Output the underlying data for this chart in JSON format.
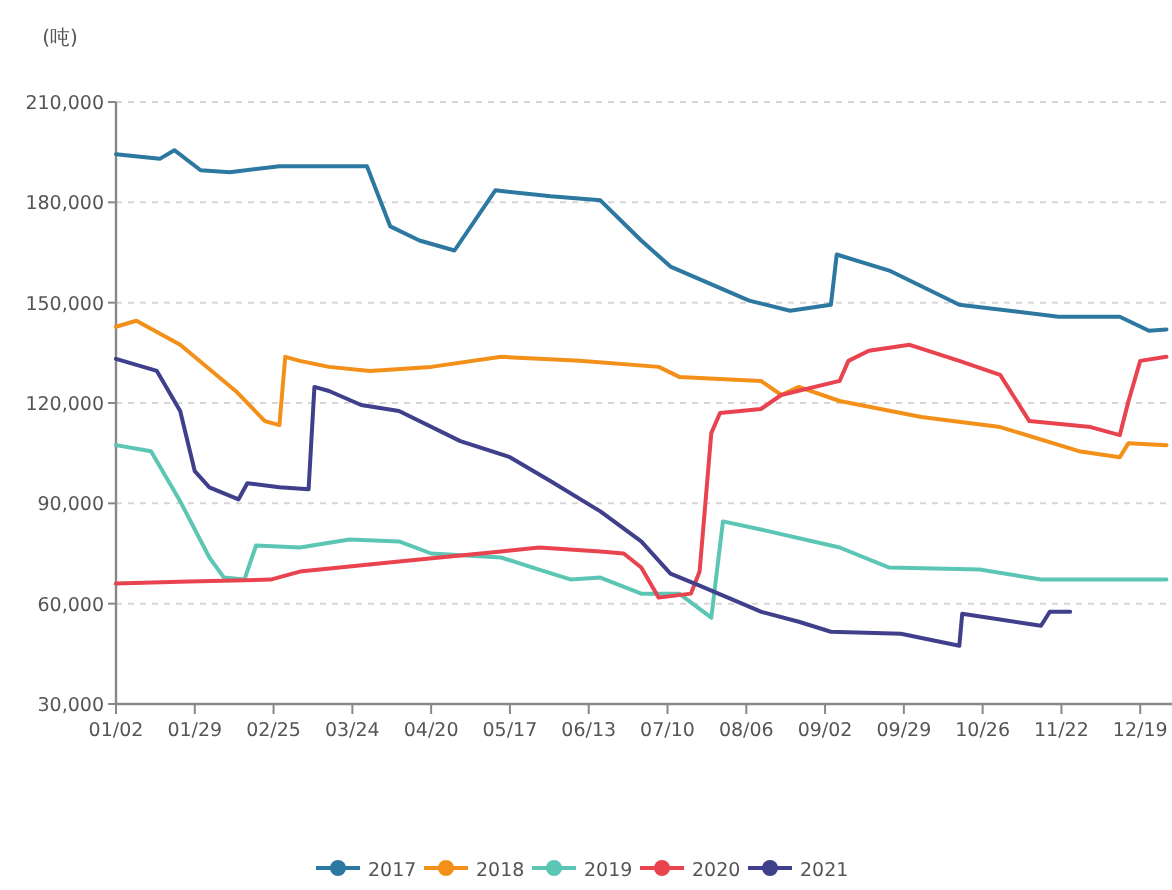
{
  "chart_data": {
    "type": "line",
    "ylabel": "(吨)",
    "xlim": [
      "--01-02",
      "--12-30"
    ],
    "xticks": [
      {
        "value": "--01-02",
        "label": "01/02"
      },
      {
        "value": "--01-29",
        "label": "01/29"
      },
      {
        "value": "--02-25",
        "label": "02/25"
      },
      {
        "value": "--03-24",
        "label": "03/24"
      },
      {
        "value": "--04-20",
        "label": "04/20"
      },
      {
        "value": "--05-17",
        "label": "05/17"
      },
      {
        "value": "--06-13",
        "label": "06/13"
      },
      {
        "value": "--07-10",
        "label": "07/10"
      },
      {
        "value": "--08-06",
        "label": "08/06"
      },
      {
        "value": "--09-02",
        "label": "09/02"
      },
      {
        "value": "--09-29",
        "label": "09/29"
      },
      {
        "value": "--10-26",
        "label": "10/26"
      },
      {
        "value": "--11-22",
        "label": "11/22"
      },
      {
        "value": "--12-19",
        "label": "12/19"
      }
    ],
    "ylim": [
      30000,
      210000
    ],
    "yticks": [
      {
        "value": 30000,
        "label": "30,000"
      },
      {
        "value": 60000,
        "label": "60,000"
      },
      {
        "value": 90000,
        "label": "90,000"
      },
      {
        "value": 120000,
        "label": "120,000"
      },
      {
        "value": 150000,
        "label": "150,000"
      },
      {
        "value": 180000,
        "label": "180,000"
      },
      {
        "value": 210000,
        "label": "210,000"
      }
    ],
    "grid": "y",
    "legend": "bottom",
    "series": [
      {
        "name": "2017",
        "color": "#2c78a0",
        "x": [
          "--01-02",
          "--01-17",
          "--01-22",
          "--01-31",
          "--02-10",
          "--02-27",
          "--03-29",
          "--04-06",
          "--04-16",
          "--04-28",
          "--05-12",
          "--05-31",
          "--06-17",
          "--07-01",
          "--07-11",
          "--08-07",
          "--08-21",
          "--09-04",
          "--09-06",
          "--09-24",
          "--10-18",
          "--11-21",
          "--12-12",
          "--12-22",
          "--12-28"
        ],
        "values": [
          194400,
          193000,
          195600,
          189600,
          189000,
          190800,
          190800,
          172800,
          168600,
          165600,
          183600,
          181800,
          180600,
          168600,
          160800,
          150600,
          147600,
          149400,
          164400,
          159600,
          149400,
          145800,
          145800,
          141600,
          142000
        ]
      },
      {
        "name": "2018",
        "color": "#f39019",
        "x": [
          "--01-02",
          "--01-09",
          "--01-24",
          "--02-12",
          "--02-22",
          "--02-27",
          "--03-01",
          "--03-06",
          "--03-16",
          "--03-30",
          "--04-20",
          "--05-14",
          "--06-10",
          "--07-07",
          "--07-14",
          "--08-11",
          "--08-18",
          "--08-24",
          "--09-07",
          "--10-05",
          "--11-01",
          "--11-28",
          "--12-12",
          "--12-15",
          "--12-28"
        ],
        "values": [
          142800,
          144600,
          137400,
          123600,
          114600,
          113400,
          133800,
          132600,
          130800,
          129600,
          130800,
          133800,
          132600,
          130800,
          127800,
          126600,
          122400,
          124800,
          120600,
          115800,
          112800,
          105600,
          103800,
          108000,
          107400
        ]
      },
      {
        "name": "2019",
        "color": "#5cc6b5",
        "x": [
          "--01-02",
          "--01-14",
          "--01-24",
          "--02-03",
          "--02-08",
          "--02-15",
          "--02-19",
          "--03-06",
          "--03-23",
          "--04-09",
          "--04-20",
          "--05-14",
          "--05-27",
          "--06-07",
          "--06-17",
          "--07-01",
          "--07-14",
          "--07-25",
          "--07-29",
          "--08-11",
          "--09-07",
          "--09-24",
          "--10-25",
          "--11-15",
          "--12-28"
        ],
        "values": [
          107400,
          105600,
          90600,
          73800,
          67800,
          67200,
          77400,
          76800,
          79200,
          78600,
          75000,
          73800,
          70200,
          67200,
          67800,
          63000,
          63000,
          55800,
          84600,
          82200,
          76800,
          70800,
          70200,
          67200,
          67200
        ]
      },
      {
        "name": "2020",
        "color": "#e8434f",
        "x": [
          "--01-02",
          "--01-27",
          "--02-24",
          "--03-06",
          "--04-09",
          "--05-14",
          "--05-27",
          "--06-17",
          "--06-25",
          "--07-01",
          "--07-07",
          "--07-18",
          "--07-21",
          "--07-25",
          "--07-28",
          "--08-11",
          "--08-18",
          "--09-07",
          "--09-10",
          "--09-17",
          "--10-01",
          "--10-18",
          "--11-01",
          "--11-11",
          "--12-02",
          "--12-12",
          "--12-15",
          "--12-19",
          "--12-28"
        ],
        "values": [
          66000,
          66600,
          67200,
          69600,
          72600,
          75600,
          76800,
          75600,
          75000,
          70800,
          61800,
          63000,
          69600,
          111000,
          117000,
          118200,
          122400,
          126600,
          132600,
          135600,
          137400,
          132600,
          128400,
          114600,
          112800,
          110400,
          120600,
          132600,
          133800
        ]
      },
      {
        "name": "2021",
        "color": "#3f3f8c",
        "x": [
          "--01-02",
          "--01-16",
          "--01-24",
          "--01-29",
          "--02-03",
          "--02-13",
          "--02-16",
          "--02-27",
          "--03-09",
          "--03-11",
          "--03-16",
          "--03-27",
          "--04-09",
          "--04-30",
          "--05-17",
          "--05-31",
          "--06-17",
          "--07-01",
          "--07-11",
          "--07-21",
          "--08-11",
          "--08-24",
          "--09-04",
          "--09-28",
          "--10-18",
          "--10-19",
          "--11-15",
          "--11-18",
          "--11-25"
        ],
        "values": [
          133200,
          129600,
          117600,
          99600,
          94800,
          91200,
          96000,
          94800,
          94200,
          124800,
          123600,
          119400,
          117600,
          108600,
          103800,
          96600,
          87600,
          78600,
          69000,
          65400,
          57600,
          54600,
          51600,
          51000,
          47400,
          57000,
          53400,
          57600,
          57600
        ]
      }
    ]
  }
}
